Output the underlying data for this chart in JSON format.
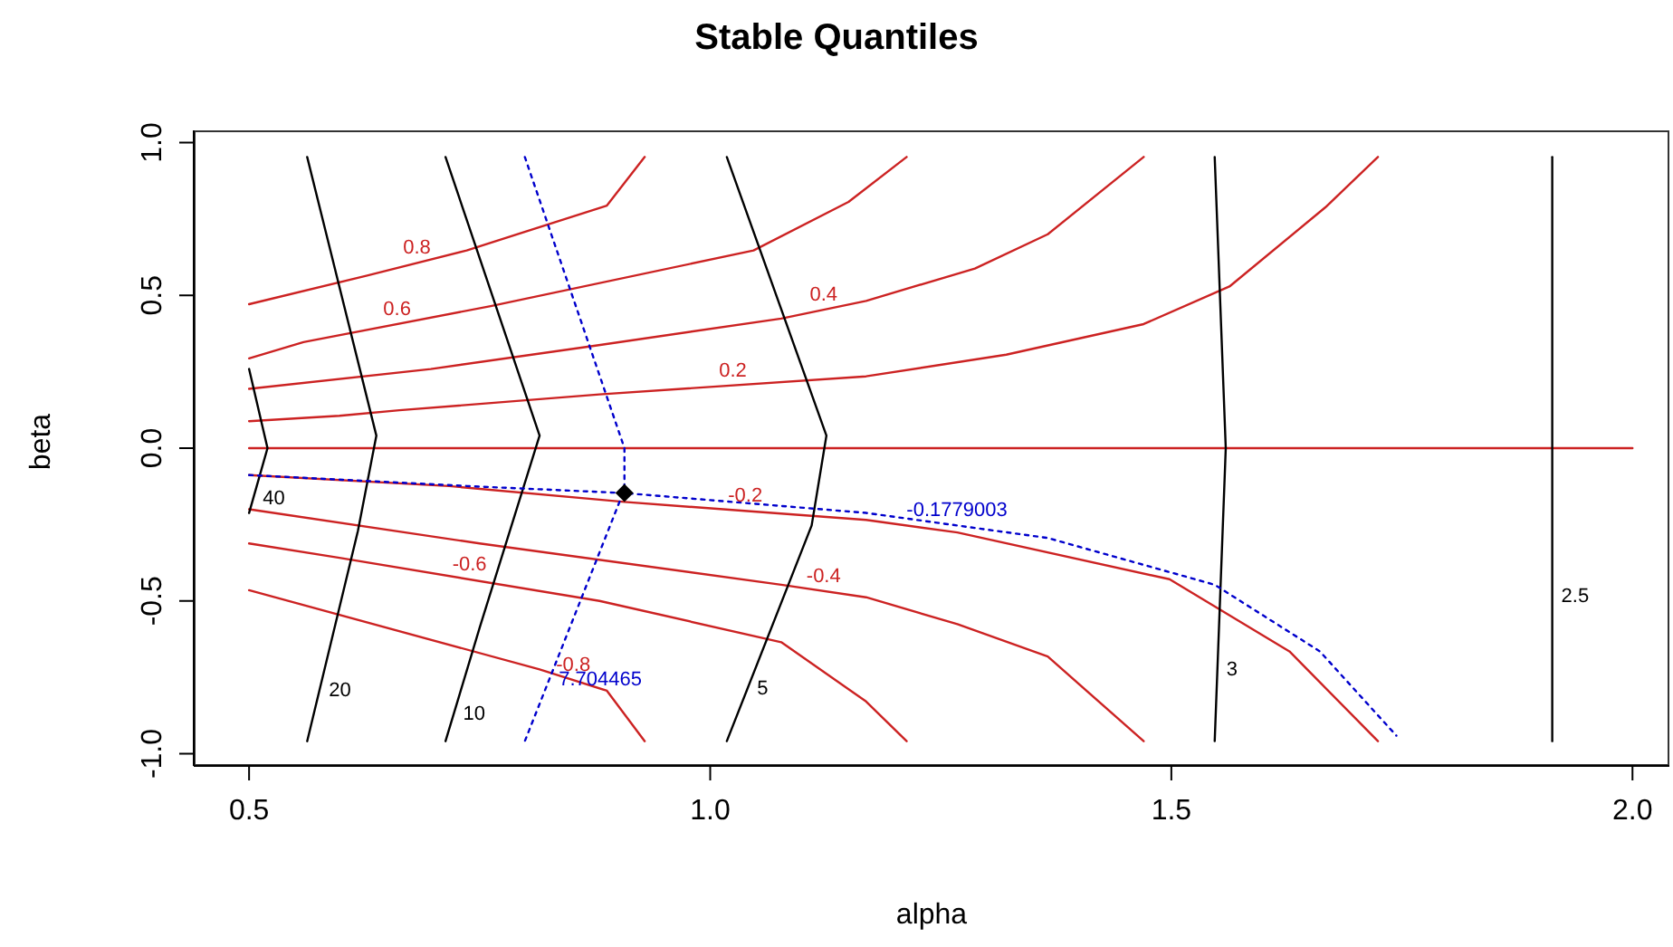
{
  "chart_data": {
    "type": "line",
    "title": "Stable Quantiles",
    "xlabel": "alpha",
    "ylabel": "beta",
    "xlim": [
      0.44,
      2.04
    ],
    "ylim": [
      -1.04,
      1.04
    ],
    "xticks": [
      {
        "value": 0.5,
        "label": "0.5"
      },
      {
        "value": 1.0,
        "label": "1.0"
      },
      {
        "value": 1.5,
        "label": "1.5"
      },
      {
        "value": 2.0,
        "label": "2.0"
      }
    ],
    "yticks": [
      {
        "value": -1.0,
        "label": "-1.0"
      },
      {
        "value": -0.5,
        "label": "-0.5"
      },
      {
        "value": 0,
        "label": "0.0"
      },
      {
        "value": 0.5,
        "label": "0.5"
      },
      {
        "value": 1.0,
        "label": "1.0"
      }
    ],
    "grid": false,
    "legend": false,
    "marker": "none",
    "series": [
      {
        "name": "0.8",
        "color": "#cc2222",
        "line_style": "solid",
        "x": [
          0.5,
          0.628,
          0.736,
          0.888,
          0.929
        ],
        "values": [
          0.471,
          0.565,
          0.647,
          0.794,
          0.953
        ]
      },
      {
        "name": "0.6",
        "color": "#cc2222",
        "line_style": "solid",
        "x": [
          0.5,
          0.559,
          0.762,
          1.047,
          1.15,
          1.213
        ],
        "values": [
          0.294,
          0.347,
          0.465,
          0.647,
          0.806,
          0.953
        ]
      },
      {
        "name": "0.4",
        "color": "#cc2222",
        "line_style": "solid",
        "x": [
          0.5,
          0.697,
          0.874,
          1.077,
          1.169,
          1.287,
          1.366,
          1.47
        ],
        "values": [
          0.194,
          0.259,
          0.335,
          0.424,
          0.482,
          0.588,
          0.7,
          0.953
        ]
      },
      {
        "name": "0.2",
        "color": "#cc2222",
        "line_style": "solid",
        "x": [
          0.5,
          0.598,
          0.663,
          0.88,
          1.169,
          1.321,
          1.47,
          1.563,
          1.667,
          1.724
        ],
        "values": [
          0.088,
          0.106,
          0.124,
          0.176,
          0.235,
          0.306,
          0.406,
          0.529,
          0.788,
          0.953
        ]
      },
      {
        "color": "#cc2222",
        "line_style": "solid",
        "x": [
          0.5,
          2.0
        ],
        "values": [
          0,
          0
        ]
      },
      {
        "name": "-0.2",
        "color": "#cc2222",
        "line_style": "solid",
        "x": [
          0.5,
          0.717,
          0.907,
          1.169,
          1.268,
          1.498,
          1.628,
          1.724
        ],
        "values": [
          -0.088,
          -0.124,
          -0.176,
          -0.235,
          -0.276,
          -0.429,
          -0.665,
          -0.959
        ]
      },
      {
        "name": "-0.4",
        "color": "#cc2222",
        "line_style": "solid",
        "x": [
          0.5,
          0.75,
          1.077,
          1.169,
          1.268,
          1.366,
          1.47
        ],
        "values": [
          -0.2,
          -0.312,
          -0.447,
          -0.488,
          -0.576,
          -0.682,
          -0.959
        ]
      },
      {
        "name": "-0.6",
        "color": "#cc2222",
        "line_style": "solid",
        "x": [
          0.5,
          0.598,
          0.88,
          1.077,
          1.169,
          1.213
        ],
        "values": [
          -0.312,
          -0.359,
          -0.5,
          -0.635,
          -0.829,
          -0.959
        ]
      },
      {
        "name": "-0.8",
        "color": "#cc2222",
        "line_style": "solid",
        "x": [
          0.5,
          0.815,
          0.888,
          0.929
        ],
        "values": [
          -0.465,
          -0.724,
          -0.794,
          -0.959
        ]
      },
      {
        "name": "20",
        "color": "#000000",
        "line_style": "solid",
        "x": [
          0.563,
          0.638,
          0.618,
          0.563
        ],
        "values": [
          0.953,
          0.041,
          -0.271,
          -0.959
        ]
      },
      {
        "name": "40",
        "color": "#000000",
        "line_style": "solid",
        "x": [
          0.5,
          0.52,
          0.5
        ],
        "values": [
          0.259,
          0,
          -0.212
        ]
      },
      {
        "name": "10",
        "color": "#000000",
        "line_style": "solid",
        "x": [
          0.713,
          0.815,
          0.75,
          0.713
        ],
        "values": [
          0.953,
          0.041,
          -0.588,
          -0.959
        ]
      },
      {
        "name": "5",
        "color": "#000000",
        "line_style": "solid",
        "x": [
          1.018,
          1.126,
          1.11,
          1.018
        ],
        "values": [
          0.953,
          0.041,
          -0.253,
          -0.959
        ]
      },
      {
        "name": "3",
        "color": "#000000",
        "line_style": "solid",
        "x": [
          1.547,
          1.559,
          1.547
        ],
        "values": [
          0.953,
          0,
          -0.959
        ]
      },
      {
        "name": "2.5",
        "color": "#000000",
        "line_style": "solid",
        "x": [
          1.913,
          1.913
        ],
        "values": [
          0.953,
          -0.959
        ]
      },
      {
        "name": "7.704465",
        "color": "#0000cc",
        "line_style": "dotted",
        "x": [
          0.799,
          0.907,
          0.907,
          0.799
        ],
        "values": [
          0.953,
          0,
          -0.135,
          -0.959
        ]
      },
      {
        "name": "-0.1779003",
        "color": "#0000cc",
        "line_style": "dotted",
        "x": [
          0.5,
          0.736,
          0.907,
          1.169,
          1.366,
          1.547,
          1.661,
          1.744
        ],
        "values": [
          -0.088,
          -0.124,
          -0.147,
          -0.212,
          -0.294,
          -0.447,
          -0.665,
          -0.941
        ]
      },
      {
        "type": "scatter",
        "marker": "diamond",
        "color": "#000000",
        "x": [
          0.907
        ],
        "values": [
          -0.147
        ]
      }
    ]
  }
}
